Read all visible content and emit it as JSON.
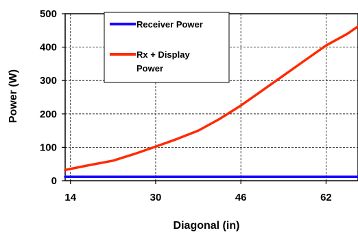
{
  "chart_data": {
    "type": "line",
    "title": "",
    "xlabel": "Diagonal (in)",
    "ylabel": "Power (W)",
    "xlim": [
      13,
      68
    ],
    "ylim": [
      0,
      500
    ],
    "x_ticks": [
      14,
      30,
      46,
      62
    ],
    "y_ticks": [
      0,
      100,
      200,
      300,
      400,
      500
    ],
    "grid": true,
    "legend_position": "top-center",
    "series": [
      {
        "name": "Receiver Power",
        "color": "#1a00ff",
        "x": [
          13,
          20,
          30,
          40,
          50,
          60,
          68
        ],
        "y": [
          12,
          12,
          12,
          12,
          12,
          12,
          12
        ]
      },
      {
        "name": "Rx + Display\nPower",
        "color": "#ff2a00",
        "x": [
          13,
          17,
          22,
          26,
          30,
          34,
          38,
          42,
          46,
          50,
          54,
          58,
          62,
          66,
          68
        ],
        "y": [
          32,
          45,
          60,
          80,
          102,
          125,
          150,
          185,
          225,
          270,
          315,
          360,
          405,
          440,
          462
        ]
      }
    ]
  }
}
